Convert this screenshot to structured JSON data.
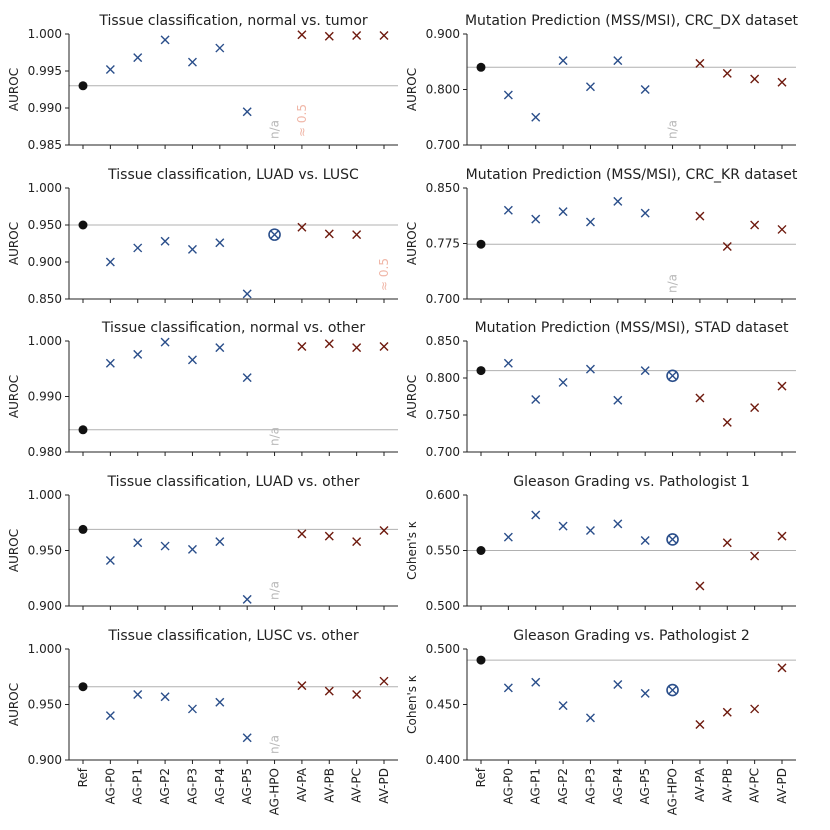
{
  "colors": {
    "ref": "#111111",
    "ag": "#2a4e8a",
    "av": "#6e1a0e",
    "refline": "#b0b0b0",
    "note_na": "#b8b8b8",
    "note_half": "#f0b7a8"
  },
  "categories": [
    "Ref",
    "AG-P0",
    "AG-P1",
    "AG-P2",
    "AG-P3",
    "AG-P4",
    "AG-P5",
    "AG-HPO",
    "AV-PA",
    "AV-PB",
    "AV-PC",
    "AV-PD"
  ],
  "chart_data": [
    {
      "type": "scatter",
      "title": "Tissue classification, normal vs. tumor",
      "ylabel": "AUROC",
      "ylim": [
        0.985,
        1.0
      ],
      "yticks": [
        0.985,
        0.99,
        0.995,
        1.0
      ],
      "ytick_labels": [
        "0.985",
        "0.990",
        "0.995",
        "1.000"
      ],
      "ref": 0.993,
      "values": [
        0.993,
        0.9952,
        0.9968,
        0.9992,
        0.9962,
        0.9981,
        0.9895,
        null,
        0.9999,
        0.9997,
        0.9998,
        0.9998
      ],
      "hpo_circle": false,
      "notes": [
        {
          "category": "AG-HPO",
          "text": "n/a",
          "kind": "na"
        },
        {
          "category": "AV-PA",
          "text": "≈ 0.5",
          "kind": "half"
        }
      ]
    },
    {
      "type": "scatter",
      "title": "Mutation Prediction (MSS/MSI), CRC_DX dataset",
      "ylabel": "AUROC",
      "ylim": [
        0.7,
        0.9
      ],
      "yticks": [
        0.7,
        0.8,
        0.9
      ],
      "ytick_labels": [
        "0.700",
        "0.800",
        "0.900"
      ],
      "ref": 0.84,
      "values": [
        0.84,
        0.79,
        0.75,
        0.852,
        0.805,
        0.852,
        0.8,
        null,
        0.847,
        0.829,
        0.819,
        0.813
      ],
      "hpo_circle": false,
      "notes": [
        {
          "category": "AG-HPO",
          "text": "n/a",
          "kind": "na"
        }
      ]
    },
    {
      "type": "scatter",
      "title": "Tissue classification, LUAD vs. LUSC",
      "ylabel": "AUROC",
      "ylim": [
        0.85,
        1.0
      ],
      "yticks": [
        0.85,
        0.9,
        0.95,
        1.0
      ],
      "ytick_labels": [
        "0.850",
        "0.900",
        "0.950",
        "1.000"
      ],
      "ref": 0.95,
      "values": [
        0.95,
        0.9,
        0.919,
        0.928,
        0.917,
        0.926,
        0.857,
        0.937,
        0.947,
        0.938,
        0.937,
        null
      ],
      "hpo_circle": true,
      "notes": [
        {
          "category": "AV-PD",
          "text": "≈ 0.5",
          "kind": "half"
        }
      ]
    },
    {
      "type": "scatter",
      "title": "Mutation Prediction (MSS/MSI), CRC_KR dataset",
      "ylabel": "AUROC",
      "ylim": [
        0.7,
        0.85
      ],
      "yticks": [
        0.7,
        0.775,
        0.85
      ],
      "ytick_labels": [
        "0.700",
        "0.775",
        "0.850"
      ],
      "ref": 0.774,
      "values": [
        0.774,
        0.82,
        0.808,
        0.818,
        0.804,
        0.832,
        0.816,
        null,
        0.812,
        0.771,
        0.8,
        0.794
      ],
      "hpo_circle": false,
      "notes": [
        {
          "category": "AG-HPO",
          "text": "n/a",
          "kind": "na"
        }
      ]
    },
    {
      "type": "scatter",
      "title": "Tissue classification, normal vs. other",
      "ylabel": "AUROC",
      "ylim": [
        0.98,
        1.0
      ],
      "yticks": [
        0.98,
        0.99,
        1.0
      ],
      "ytick_labels": [
        "0.980",
        "0.990",
        "1.000"
      ],
      "ref": 0.984,
      "values": [
        0.984,
        0.996,
        0.9976,
        0.9998,
        0.9966,
        0.9988,
        0.9934,
        null,
        0.999,
        0.9995,
        0.9988,
        0.999
      ],
      "hpo_circle": false,
      "notes": [
        {
          "category": "AG-HPO",
          "text": "n/a",
          "kind": "na"
        }
      ]
    },
    {
      "type": "scatter",
      "title": "Mutation Prediction (MSS/MSI), STAD dataset",
      "ylabel": "AUROC",
      "ylim": [
        0.7,
        0.85
      ],
      "yticks": [
        0.7,
        0.75,
        0.8,
        0.85
      ],
      "ytick_labels": [
        "0.700",
        "0.750",
        "0.800",
        "0.850"
      ],
      "ref": 0.81,
      "values": [
        0.81,
        0.82,
        0.771,
        0.794,
        0.812,
        0.77,
        0.81,
        0.803,
        0.773,
        0.74,
        0.76,
        0.789
      ],
      "hpo_circle": true,
      "notes": []
    },
    {
      "type": "scatter",
      "title": "Tissue classification, LUAD vs. other",
      "ylabel": "AUROC",
      "ylim": [
        0.9,
        1.0
      ],
      "yticks": [
        0.9,
        0.95,
        1.0
      ],
      "ytick_labels": [
        "0.900",
        "0.950",
        "1.000"
      ],
      "ref": 0.969,
      "values": [
        0.969,
        0.941,
        0.957,
        0.954,
        0.951,
        0.958,
        0.906,
        null,
        0.965,
        0.963,
        0.958,
        0.968
      ],
      "hpo_circle": false,
      "notes": [
        {
          "category": "AG-HPO",
          "text": "n/a",
          "kind": "na"
        }
      ]
    },
    {
      "type": "scatter",
      "title": "Gleason Grading vs. Pathologist 1",
      "ylabel": "Cohen's κ",
      "ylim": [
        0.5,
        0.6
      ],
      "yticks": [
        0.5,
        0.55,
        0.6
      ],
      "ytick_labels": [
        "0.500",
        "0.550",
        "0.600"
      ],
      "ref": 0.55,
      "values": [
        0.55,
        0.562,
        0.582,
        0.572,
        0.568,
        0.574,
        0.559,
        0.56,
        0.518,
        0.557,
        0.545,
        0.563
      ],
      "hpo_circle": true,
      "notes": []
    },
    {
      "type": "scatter",
      "title": "Tissue classification, LUSC vs. other",
      "ylabel": "AUROC",
      "ylim": [
        0.9,
        1.0
      ],
      "yticks": [
        0.9,
        0.95,
        1.0
      ],
      "ytick_labels": [
        "0.900",
        "0.950",
        "1.000"
      ],
      "ref": 0.966,
      "values": [
        0.966,
        0.94,
        0.959,
        0.957,
        0.946,
        0.952,
        0.92,
        null,
        0.967,
        0.962,
        0.959,
        0.971
      ],
      "hpo_circle": false,
      "notes": [
        {
          "category": "AG-HPO",
          "text": "n/a",
          "kind": "na"
        }
      ]
    },
    {
      "type": "scatter",
      "title": "Gleason Grading vs. Pathologist 2",
      "ylabel": "Cohen's κ",
      "ylim": [
        0.4,
        0.5
      ],
      "yticks": [
        0.4,
        0.45,
        0.5
      ],
      "ytick_labels": [
        "0.400",
        "0.450",
        "0.500"
      ],
      "ref": 0.49,
      "values": [
        0.49,
        0.465,
        0.47,
        0.449,
        0.438,
        0.468,
        0.46,
        0.463,
        0.432,
        0.443,
        0.446,
        0.483
      ],
      "hpo_circle": true,
      "notes": []
    }
  ]
}
